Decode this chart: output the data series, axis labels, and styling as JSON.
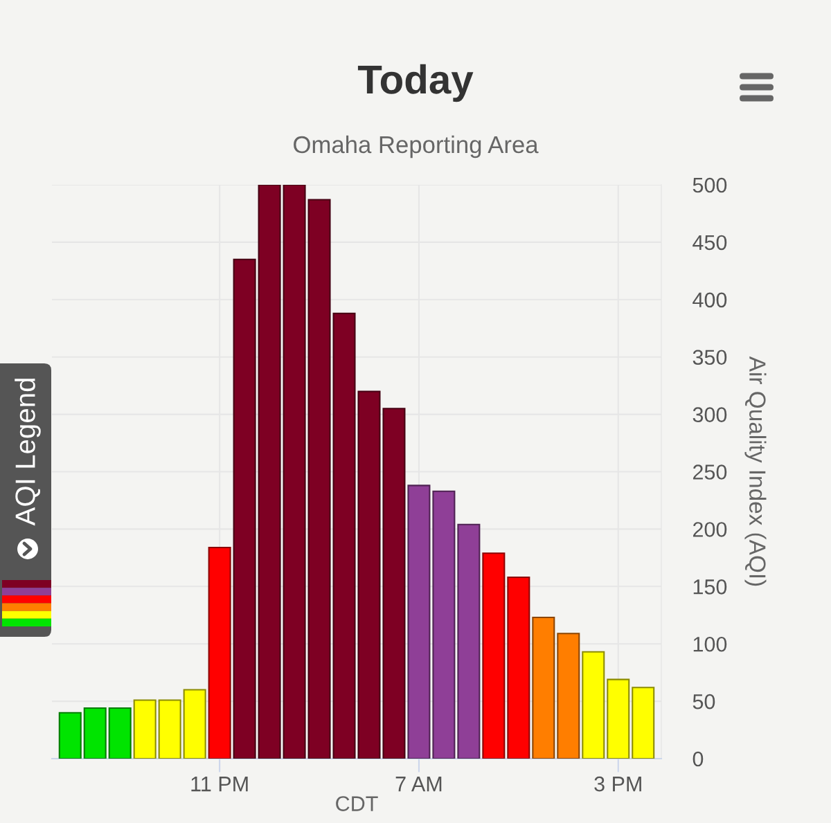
{
  "chart_data": {
    "type": "bar",
    "title": "Today",
    "subtitle": "Omaha Reporting Area",
    "xlabel": "CDT",
    "ylabel": "Air Quality Index (AQI)",
    "categories": [
      null,
      null,
      null,
      null,
      null,
      null,
      "11 PM",
      null,
      null,
      null,
      null,
      null,
      null,
      null,
      "7 AM",
      null,
      null,
      null,
      null,
      null,
      null,
      null,
      "3 PM",
      null
    ],
    "values": [
      40,
      44,
      44,
      51,
      51,
      60,
      184,
      435,
      500,
      500,
      487,
      388,
      320,
      305,
      238,
      233,
      204,
      179,
      158,
      123,
      109,
      93,
      69,
      62
    ],
    "colors": [
      "#00e400",
      "#00e400",
      "#00e400",
      "#ffff00",
      "#ffff00",
      "#ffff00",
      "#ff0000",
      "#7e0023",
      "#7e0023",
      "#7e0023",
      "#7e0023",
      "#7e0023",
      "#7e0023",
      "#7e0023",
      "#8f3f97",
      "#8f3f97",
      "#8f3f97",
      "#ff0000",
      "#ff0000",
      "#ff7e00",
      "#ff7e00",
      "#ffff00",
      "#ffff00",
      "#ffff00"
    ],
    "ylim": [
      0,
      500
    ],
    "yticks": [
      0,
      50,
      100,
      150,
      200,
      250,
      300,
      350,
      400,
      450,
      500
    ],
    "grid": true,
    "annotations": [
      "AQI Legend"
    ]
  }
}
